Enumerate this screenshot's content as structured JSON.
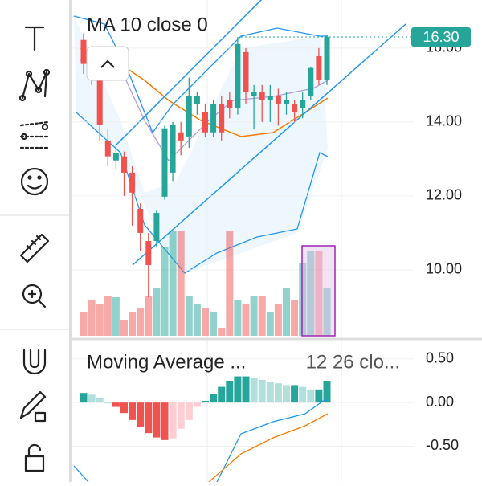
{
  "chart_data": [
    {
      "type": "candlestick",
      "title": "MA 10 close 0",
      "last_price_label": {
        "value": 16.3,
        "label": "16.30"
      },
      "open": [
        16.22,
        15.78,
        15.13,
        13.5,
        12.96,
        13.07,
        12.63,
        11.65,
        10.78,
        10.78,
        11.98,
        12.63,
        13.72,
        13.61,
        14.48,
        14.26,
        13.72,
        14.48,
        14.59,
        14.37,
        15.89,
        14.7,
        14.8,
        14.59,
        14.7,
        14.48,
        14.48,
        14.37,
        14.7,
        15.78,
        15.13
      ],
      "high": [
        16.4,
        15.9,
        15.2,
        13.8,
        13.4,
        13.2,
        12.8,
        11.8,
        11.0,
        11.6,
        13.9,
        14.0,
        14.0,
        15.2,
        14.8,
        14.5,
        14.6,
        14.7,
        14.8,
        16.3,
        16.0,
        15.0,
        15.0,
        15.0,
        14.9,
        14.8,
        14.6,
        14.8,
        15.5,
        16.0,
        16.35
      ],
      "low": [
        15.3,
        15.0,
        13.5,
        12.8,
        12.7,
        12.0,
        11.2,
        10.5,
        9.26,
        10.6,
        11.9,
        12.4,
        13.1,
        13.3,
        14.2,
        13.6,
        13.6,
        13.5,
        14.1,
        14.2,
        14.5,
        13.8,
        14.0,
        14.0,
        13.9,
        14.2,
        14.0,
        14.1,
        14.6,
        15.0,
        15.0
      ],
      "close": [
        15.57,
        15.13,
        13.93,
        13.07,
        13.17,
        12.63,
        12.09,
        11.0,
        10.13,
        11.54,
        13.83,
        13.93,
        13.5,
        14.7,
        14.7,
        13.72,
        14.48,
        13.72,
        14.37,
        16.11,
        14.8,
        14.8,
        14.59,
        14.7,
        14.48,
        14.59,
        14.26,
        14.59,
        15.46,
        15.13,
        16.3
      ],
      "volume": [
        30,
        45,
        40,
        50,
        48,
        20,
        30,
        35,
        50,
        60,
        110,
        130,
        130,
        50,
        40,
        35,
        30,
        10,
        130,
        45,
        40,
        50,
        50,
        30,
        40,
        60,
        45,
        90,
        105,
        105,
        60
      ],
      "ylim": [
        8.13,
        17.3
      ],
      "yticks": [
        {
          "value": 16,
          "label": "16.00"
        },
        {
          "value": 14,
          "label": "14.00"
        },
        {
          "value": 12,
          "label": "12.00"
        },
        {
          "value": 10,
          "label": "10.00"
        }
      ],
      "up_color": "#26a69a",
      "down_color": "#ef5350"
    },
    {
      "type": "histogram",
      "title": "Moving Average ...",
      "subtitle": "12 26 clo...",
      "values": [
        0.11,
        0.09,
        0.05,
        0,
        -0.05,
        -0.12,
        -0.2,
        -0.28,
        -0.35,
        -0.4,
        -0.43,
        -0.41,
        -0.3,
        -0.2,
        -0.05,
        0.02,
        0.1,
        0.18,
        0.25,
        0.3,
        0.3,
        0.28,
        0.26,
        0.24,
        0.22,
        0.2,
        0.2,
        0.18,
        0.15,
        0.15,
        0.25
      ],
      "ylim": [
        -0.91,
        0.71
      ],
      "yticks": [
        {
          "value": 0.5,
          "label": "0.50"
        },
        {
          "value": 0,
          "label": "0.00"
        },
        {
          "value": -0.5,
          "label": "-0.50"
        }
      ]
    }
  ]
}
